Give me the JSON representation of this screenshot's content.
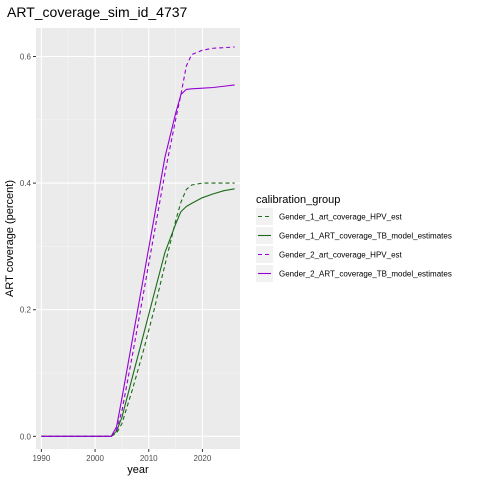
{
  "chart_data": {
    "type": "line",
    "title": "ART_coverage_sim_id_4737",
    "xlabel": "year",
    "ylabel": "ART coverage (percent)",
    "xlim": [
      1989,
      2027
    ],
    "ylim": [
      -0.02,
      0.645
    ],
    "x_ticks": [
      1990,
      2000,
      2010,
      2020
    ],
    "x_tick_labels": [
      "1990",
      "2000",
      "2010",
      "2020"
    ],
    "y_ticks": [
      0,
      0.2,
      0.4,
      0.6
    ],
    "y_tick_labels": [
      "0.0",
      "0.2",
      "0.4",
      "0.6"
    ],
    "grid": true,
    "legend": {
      "title": "calibration_group",
      "position": "right"
    },
    "series": [
      {
        "name": "Gender_1_art_coverage_HPV_est",
        "color": "#1a6b1a",
        "dash": "dashed",
        "x": [
          1990,
          2003,
          2004,
          2005,
          2007,
          2009,
          2011,
          2013,
          2015,
          2016,
          2017,
          2018,
          2020,
          2022,
          2024,
          2026
        ],
        "y": [
          0.0,
          0.0,
          0.005,
          0.02,
          0.075,
          0.135,
          0.2,
          0.27,
          0.34,
          0.37,
          0.39,
          0.397,
          0.4,
          0.4,
          0.4,
          0.4
        ]
      },
      {
        "name": "Gender_1_ART_coverage_TB_model_estimates",
        "color": "#1a6b1a",
        "dash": "solid",
        "x": [
          1990,
          2003,
          2004,
          2005,
          2007,
          2009,
          2011,
          2013,
          2015,
          2016,
          2017,
          2018,
          2020,
          2022,
          2024,
          2026
        ],
        "y": [
          0.0,
          0.0,
          0.008,
          0.03,
          0.095,
          0.16,
          0.225,
          0.29,
          0.335,
          0.355,
          0.363,
          0.368,
          0.377,
          0.383,
          0.388,
          0.391
        ]
      },
      {
        "name": "Gender_2_art_coverage_HPV_est",
        "color": "#9400d3",
        "dash": "dashed",
        "x": [
          1990,
          2003,
          2004,
          2005,
          2007,
          2009,
          2011,
          2013,
          2015,
          2016,
          2017,
          2018,
          2020,
          2022,
          2024,
          2026
        ],
        "y": [
          0.0,
          0.0,
          0.01,
          0.04,
          0.13,
          0.225,
          0.32,
          0.415,
          0.5,
          0.54,
          0.585,
          0.603,
          0.61,
          0.613,
          0.614,
          0.615
        ]
      },
      {
        "name": "Gender_2_ART_coverage_TB_model_estimates",
        "color": "#9400d3",
        "dash": "solid",
        "x": [
          1990,
          2003,
          2004,
          2005,
          2007,
          2009,
          2011,
          2013,
          2015,
          2016,
          2017,
          2018,
          2020,
          2022,
          2024,
          2026
        ],
        "y": [
          0.0,
          0.0,
          0.015,
          0.06,
          0.155,
          0.25,
          0.345,
          0.44,
          0.51,
          0.54,
          0.548,
          0.549,
          0.55,
          0.551,
          0.553,
          0.555
        ]
      }
    ]
  }
}
